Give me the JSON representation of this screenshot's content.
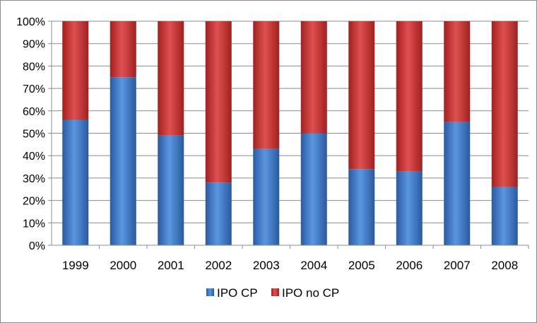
{
  "chart_data": {
    "type": "bar",
    "stacked": true,
    "percent": true,
    "categories": [
      "1999",
      "2000",
      "2001",
      "2002",
      "2003",
      "2004",
      "2005",
      "2006",
      "2007",
      "2008"
    ],
    "series": [
      {
        "name": "IPO CP",
        "color": "#3c78c8",
        "values": [
          56,
          75,
          49,
          28,
          43,
          50,
          34,
          33,
          55,
          26
        ]
      },
      {
        "name": "IPO no CP",
        "color": "#c83232",
        "values": [
          44,
          25,
          51,
          72,
          57,
          50,
          66,
          67,
          45,
          74
        ]
      }
    ],
    "yticks": [
      "0%",
      "10%",
      "20%",
      "30%",
      "40%",
      "50%",
      "60%",
      "70%",
      "80%",
      "90%",
      "100%"
    ],
    "ylim": [
      0,
      100
    ],
    "grid": true,
    "legend_position": "bottom",
    "title": "",
    "xlabel": "",
    "ylabel": ""
  }
}
